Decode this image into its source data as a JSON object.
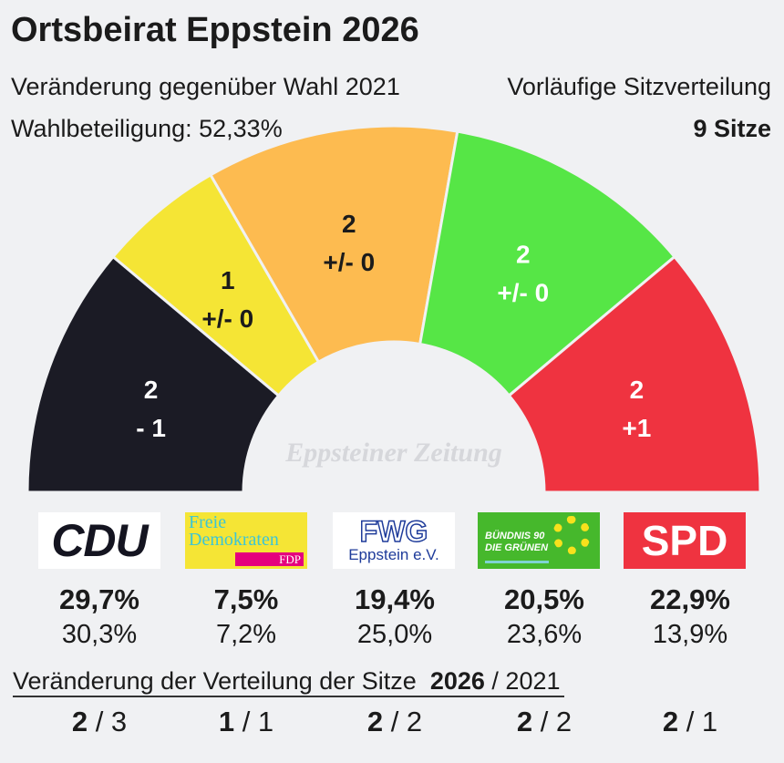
{
  "header": {
    "title": "Ortsbeirat Eppstein 2026",
    "subtitle_left": "Veränderung gegenüber Wahl 2021",
    "subtitle_right": "Vorläufige Sitzverteilung",
    "turnout": "Wahlbeteiligung: 52,33%",
    "seats_total": "9 Sitze"
  },
  "chart_data": {
    "type": "pie",
    "subtype": "semicircle-parliament",
    "total_seats": 9,
    "parties": [
      {
        "name": "CDU",
        "seats": 2,
        "change": "- 1",
        "color": "#1b1b25",
        "text_color": "#ffffff",
        "pct_2026": "29,7%",
        "pct_2021": "30,3%",
        "seats_2021": 3
      },
      {
        "name": "FDP",
        "seats": 1,
        "change": "+/- 0",
        "color": "#f5e535",
        "text_color": "#1b1b1b",
        "pct_2026": "7,5%",
        "pct_2021": "7,2%",
        "seats_2021": 1
      },
      {
        "name": "FWG",
        "seats": 2,
        "change": "+/- 0",
        "color": "#fdbb50",
        "text_color": "#1b1b1b",
        "pct_2026": "19,4%",
        "pct_2021": "25,0%",
        "seats_2021": 2
      },
      {
        "name": "Grüne",
        "seats": 2,
        "change": "+/- 0",
        "color": "#56e646",
        "text_color": "#ffffff",
        "pct_2026": "20,5%",
        "pct_2021": "23,6%",
        "seats_2021": 2
      },
      {
        "name": "SPD",
        "seats": 2,
        "change": "+1",
        "color": "#ef3340",
        "text_color": "#ffffff",
        "pct_2026": "22,9%",
        "pct_2021": "13,9%",
        "seats_2021": 1
      }
    ]
  },
  "logos": {
    "cdu": "CDU",
    "fdp_1": "Freie",
    "fdp_2": "Demokraten",
    "fdp_3": "FDP",
    "fwg_1": "FWG",
    "fwg_2": "Eppstein e.V.",
    "gruene_1": "BÜNDNIS 90",
    "gruene_2": "DIE GRÜNEN",
    "spd": "SPD"
  },
  "seat_change": {
    "heading": "Veränderung der Verteilung der Sitze",
    "year_new": "2026",
    "year_old": "/ 2021",
    "rows": [
      {
        "new": "2",
        "old": "/ 3"
      },
      {
        "new": "1",
        "old": "/ 1"
      },
      {
        "new": "2",
        "old": "/ 2"
      },
      {
        "new": "2",
        "old": "/ 2"
      },
      {
        "new": "2",
        "old": "/ 1"
      }
    ]
  },
  "watermark": "Eppsteiner Zeitung"
}
